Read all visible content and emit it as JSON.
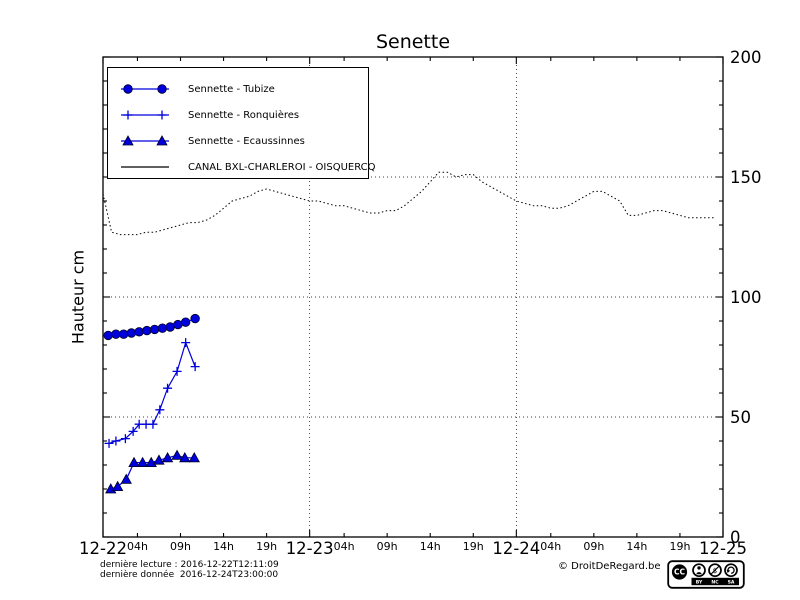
{
  "title": "Senette",
  "ylabel": "Hauteur cm",
  "footer": {
    "line1": "dernière lecture : 2016-12-22T12:11:09",
    "line2": "dernière donnée  2016-12-24T23:00:00",
    "copyright": "© DroitDeRegard.be",
    "cc": {
      "cc": "CC",
      "by": "BY",
      "nc": "NC",
      "sa": "SA"
    }
  },
  "colors": {
    "series_blue": "#0000dd",
    "canal_black": "#000000",
    "grid": "#000000"
  },
  "chart_data": {
    "type": "line",
    "title": "Senette",
    "ylabel": "Hauteur cm",
    "ylim": [
      0,
      200
    ],
    "xlim_hours": [
      0,
      72
    ],
    "x_unit": "hours from 2016-12-22 00:00",
    "grid": {
      "h_lines": [
        50,
        100,
        150
      ],
      "v_lines": [
        24,
        48
      ]
    },
    "y_major_ticks": [
      0,
      50,
      100,
      150,
      200
    ],
    "y_minor_step": 10,
    "x_day_ticks": [
      {
        "hour": 0,
        "label": "12-22"
      },
      {
        "hour": 24,
        "label": "12-23"
      },
      {
        "hour": 48,
        "label": "12-24"
      },
      {
        "hour": 72,
        "label": "12-25"
      }
    ],
    "x_hour_ticks": [
      {
        "hour": 4,
        "label": "04h"
      },
      {
        "hour": 9,
        "label": "09h"
      },
      {
        "hour": 14,
        "label": "14h"
      },
      {
        "hour": 19,
        "label": "19h"
      },
      {
        "hour": 28,
        "label": "04h"
      },
      {
        "hour": 33,
        "label": "09h"
      },
      {
        "hour": 38,
        "label": "14h"
      },
      {
        "hour": 43,
        "label": "19h"
      },
      {
        "hour": 52,
        "label": "04h"
      },
      {
        "hour": 57,
        "label": "09h"
      },
      {
        "hour": 62,
        "label": "14h"
      },
      {
        "hour": 67,
        "label": "19h"
      }
    ],
    "legend_position": "upper left",
    "series": [
      {
        "name": "Sennette - Tubize",
        "marker": "circle",
        "line": "solid",
        "color": "#0000dd",
        "x": [
          0.6,
          1.5,
          2.4,
          3.3,
          4.2,
          5.1,
          6.0,
          6.9,
          7.8,
          8.7,
          9.6,
          10.7
        ],
        "y": [
          84,
          84.5,
          84.5,
          85,
          85.5,
          86,
          86.5,
          87,
          87.5,
          88.5,
          89.5,
          91
        ]
      },
      {
        "name": "Sennette - Ronquières",
        "marker": "plus",
        "line": "solid",
        "color": "#0000dd",
        "x": [
          0.7,
          1.5,
          2.6,
          3.5,
          4.2,
          5.0,
          5.8,
          6.6,
          7.5,
          8.6,
          9.6,
          10.7
        ],
        "y": [
          39,
          40,
          41,
          44,
          47,
          47,
          47,
          53,
          62,
          69,
          81,
          71
        ]
      },
      {
        "name": "Sennette - Ecaussinnes",
        "marker": "triangle",
        "line": "solid",
        "color": "#0000dd",
        "x": [
          0.9,
          1.7,
          2.7,
          3.6,
          4.6,
          5.6,
          6.5,
          7.5,
          8.6,
          9.5,
          10.6
        ],
        "y": [
          20,
          21,
          24,
          31,
          31,
          31,
          32,
          33,
          34,
          33,
          33
        ]
      },
      {
        "name": "CANAL BXL-CHARLEROI  - OISQUERCQ",
        "marker": "none",
        "line": "dotted",
        "color": "#000000",
        "x_start": 0,
        "x_step": 1,
        "y": [
          143,
          127,
          126,
          126,
          126,
          127,
          127,
          128,
          129,
          130,
          131,
          131,
          132,
          134,
          137,
          140,
          141,
          142,
          144,
          145,
          144,
          143,
          142,
          141,
          140,
          140,
          139,
          138,
          138,
          137,
          136,
          135,
          135,
          136,
          136,
          138,
          141,
          144,
          148,
          152,
          152,
          150,
          151,
          151,
          148,
          146,
          144,
          142,
          140,
          139,
          138,
          138,
          137,
          137,
          138,
          140,
          142,
          144,
          144,
          142,
          140,
          134,
          134,
          135,
          136,
          136,
          135,
          134,
          133,
          133,
          133,
          133
        ]
      }
    ]
  }
}
